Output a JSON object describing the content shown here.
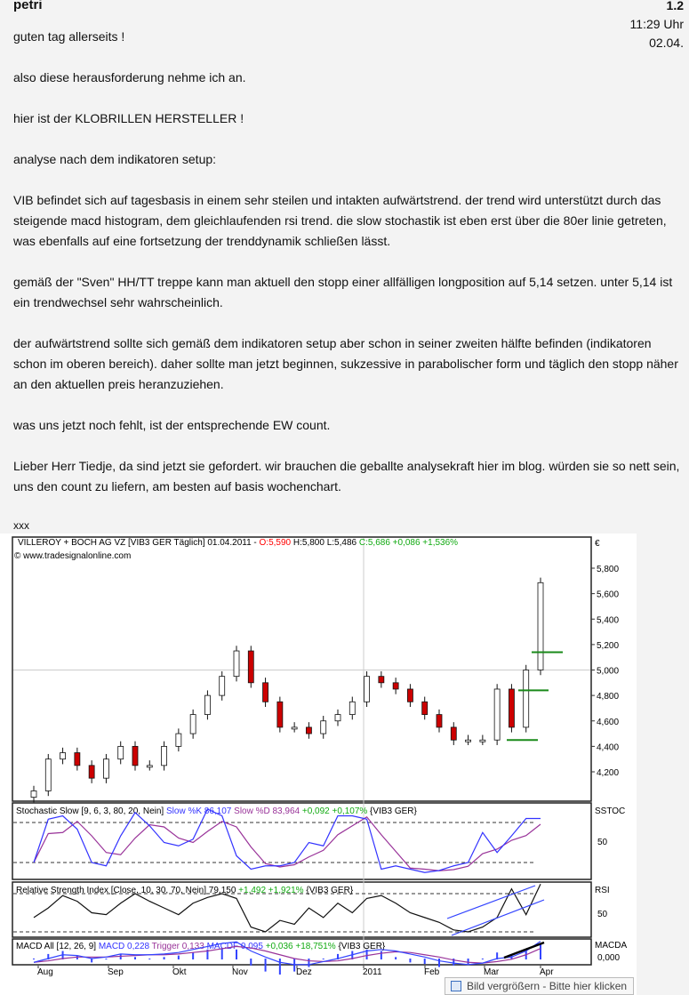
{
  "post": {
    "author": "petri",
    "number": "1.2",
    "time": "11:29 Uhr",
    "date": "02.04.",
    "paragraphs": [
      "guten tag allerseits !",
      "also diese herausforderung nehme ich an.",
      "hier ist der KLOBRILLEN HERSTELLER !",
      "analyse nach dem indikatoren setup:",
      "VIB befindet sich auf tagesbasis in einem sehr steilen und intakten aufwärtstrend. der trend wird unterstützt durch das steigende macd histogram, dem gleichlaufenden rsi trend. die slow stochastik ist eben erst über die 80er linie getreten, was ebenfalls auf eine fortsetzung der trenddynamik schließen lässt.",
      "gemäß der \"Sven\" HH/TT treppe kann man aktuell den stopp einer allfälligen longposition auf 5,14 setzen. unter 5,14 ist ein trendwechsel sehr wahrscheinlich.",
      "der aufwärtstrend sollte sich gemäß dem indikatoren setup aber schon in seiner zweiten hälfte befinden (indikatoren schon im oberen bereich). daher sollte man jetzt beginnen, sukzessive in parabolischer form und täglich den stopp näher an den aktuellen preis heranzuziehen.",
      "was uns jetzt noch fehlt, ist der entsprechende EW count.",
      "Lieber Herr Tiedje, da sind jetzt sie gefordert. wir brauchen die geballte analysekraft hier im blog. würden sie so nett sein, uns den count zu liefern, am besten auf basis wochenchart."
    ],
    "signature": "xxx"
  },
  "tooltip": "Bild vergrößern - Bitte hier klicken",
  "chart_data": [
    {
      "type": "candlestick",
      "title_black": "VILLEROY + BOCH AG VZ [VIB3 GER  Täglich] 01.04.2011 - ",
      "open_text": "O:5,590",
      "hl_text": " H:5,800 L:5,486 ",
      "close_text": "C:5,686 +0,086 +1,536%",
      "source": "© www.tradesignalonline.com",
      "unit": "€",
      "y_ticks": [
        "5,800",
        "5,600",
        "5,400",
        "5,200",
        "5,000",
        "4,800",
        "4,600",
        "4,400",
        "4,200"
      ],
      "ylim": [
        4000,
        5900
      ],
      "x_ticks": [
        "Aug",
        "Sep",
        "Okt",
        "Nov",
        "Dez",
        "2011",
        "Feb",
        "Mar",
        "Apr"
      ],
      "closes": [
        4050,
        4300,
        4350,
        4250,
        4150,
        4300,
        4400,
        4250,
        4250,
        4400,
        4500,
        4650,
        4800,
        4950,
        5150,
        4900,
        4750,
        4550,
        4550,
        4500,
        4600,
        4650,
        4750,
        4950,
        4900,
        4850,
        4750,
        4650,
        4550,
        4450,
        4450,
        4450,
        4850,
        4550,
        5000,
        5686
      ],
      "stop_levels": [
        4.45,
        4.84,
        5.14
      ],
      "colors": {
        "up": "#ffffff",
        "down": "#cc0000",
        "stop": "#1a8a1a",
        "open": "#ff0000",
        "change": "#11aa11"
      }
    },
    {
      "type": "line",
      "title_black": "Stochastic Slow [9, 6, 3, 80, 20, Nein] ",
      "k_text": "Slow %K 86,107",
      "d_text": " Slow %D 83,964",
      "change_text": " +0,092 +0,107%",
      "suffix": " {VIB3 GER}",
      "axis_label": "SSTOC",
      "y_tick": "50",
      "levels": [
        80,
        20
      ],
      "k": [
        20,
        85,
        90,
        70,
        20,
        15,
        60,
        95,
        75,
        50,
        45,
        55,
        100,
        90,
        30,
        10,
        15,
        15,
        20,
        50,
        45,
        90,
        90,
        85,
        10,
        15,
        10,
        5,
        8,
        15,
        20,
        65,
        35,
        60,
        86,
        86
      ],
      "colors": {
        "k": "#3333ff",
        "d": "#993399"
      }
    },
    {
      "type": "line",
      "title_black": "Relative Strength Index [Close, 10, 30, 70, Nein] ",
      "value_text": "79,150",
      "change_text": " +1,492 +1,921%",
      "suffix": " {VIB3 GER}",
      "axis_label": "RSI",
      "y_tick": "50",
      "levels": [
        70,
        30
      ],
      "values": [
        45,
        55,
        68,
        62,
        50,
        48,
        60,
        70,
        62,
        55,
        48,
        60,
        66,
        70,
        65,
        35,
        30,
        42,
        38,
        55,
        45,
        60,
        50,
        65,
        68,
        60,
        50,
        45,
        40,
        32,
        30,
        35,
        45,
        75,
        48,
        80
      ]
    },
    {
      "type": "line",
      "title_black": "MACD All [12, 26, 9] ",
      "macd_text": "MACD 0,228",
      "trigger_text": " Trigger 0,133",
      "macdf_text": " MACDF 0,095",
      "change_text": " +0,036 +18,751%",
      "suffix": " {VIB3 GER}",
      "axis_label": "MACDA",
      "y_tick": "0,000",
      "macd": [
        -0.05,
        0.0,
        0.05,
        0.04,
        0.0,
        0.02,
        0.06,
        0.05,
        0.05,
        0.06,
        0.08,
        0.12,
        0.16,
        0.2,
        0.22,
        0.1,
        0.02,
        -0.05,
        -0.08,
        -0.08,
        -0.04,
        0.0,
        0.05,
        0.1,
        0.12,
        0.1,
        0.06,
        0.02,
        -0.03,
        -0.06,
        -0.08,
        -0.06,
        0.0,
        0.02,
        0.1,
        0.228
      ],
      "trigger": [
        -0.05,
        -0.03,
        0.0,
        0.02,
        0.02,
        0.02,
        0.03,
        0.04,
        0.05,
        0.05,
        0.06,
        0.08,
        0.1,
        0.13,
        0.16,
        0.14,
        0.1,
        0.05,
        0.0,
        -0.03,
        -0.04,
        -0.03,
        0.0,
        0.04,
        0.07,
        0.09,
        0.08,
        0.05,
        0.02,
        -0.02,
        -0.05,
        -0.06,
        -0.04,
        -0.01,
        0.05,
        0.133
      ]
    }
  ]
}
